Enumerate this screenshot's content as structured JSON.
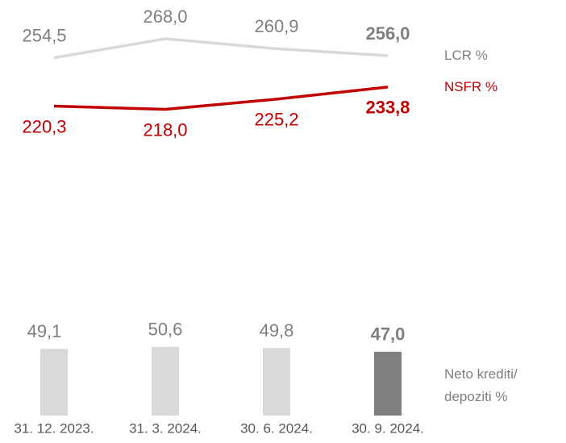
{
  "chart_data": {
    "type": "combo",
    "categories": [
      "31. 12. 2023.",
      "31. 3. 2024.",
      "30. 6. 2024.",
      "30. 9. 2024."
    ],
    "ylim": [
      180,
      280
    ],
    "y2lim": [
      0,
      60
    ],
    "series": [
      {
        "name": "LCR %",
        "type": "line",
        "color": "#d9d9d9",
        "label_color": "#7f7f7f",
        "label_position": "above",
        "values": [
          254.5,
          268.0,
          260.9,
          256.0
        ],
        "value_labels": [
          "254,5",
          "268,0",
          "260,9",
          "256,0"
        ]
      },
      {
        "name": "NSFR %",
        "type": "line",
        "color": "#c00000",
        "label_color": "#c00000",
        "label_position": "below",
        "values": [
          220.3,
          218.0,
          225.2,
          233.8
        ],
        "value_labels": [
          "220,3",
          "218,0",
          "225,2",
          "233,8"
        ]
      },
      {
        "name": "Neto krediti/\ndepoziti %",
        "type": "bar",
        "axis": "y2",
        "color": "#d9d9d9",
        "label_color": "#7f7f7f",
        "colors": [
          "#d9d9d9",
          "#d9d9d9",
          "#d9d9d9",
          "#7f7f7f"
        ],
        "label_position": "above",
        "values": [
          49.1,
          50.6,
          49.8,
          47.0
        ],
        "value_labels": [
          "49,1",
          "50,6",
          "49,8",
          "47,0"
        ]
      }
    ]
  }
}
